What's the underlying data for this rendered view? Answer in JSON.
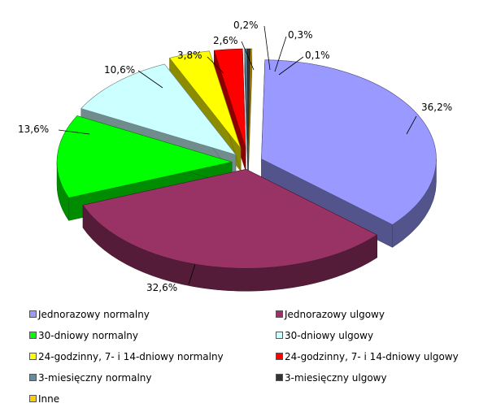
{
  "chart_data": {
    "type": "pie",
    "title": "",
    "labels": [
      "Jednorazowy normalny",
      "Jednorazowy ulgowy",
      "30-dniowy  normalny",
      "30-dniowy ulgowy",
      "24-godzinny, 7- i 14-dniowy  normalny",
      "24-godzinny, 7- i 14-dniowy  ulgowy",
      "3-miesięczny normalny",
      "3-miesięczny ulgowy",
      "Inne"
    ],
    "values": [
      36.2,
      32.6,
      13.6,
      10.6,
      3.8,
      2.6,
      0.2,
      0.3,
      0.1
    ],
    "value_labels": [
      "36,2%",
      "32,6%",
      "13,6%",
      "10,6%",
      "3,8%",
      "2,6%",
      "0,2%",
      "0,3%",
      "0,1%"
    ],
    "colors": [
      "#9999ff",
      "#993366",
      "#00ff00",
      "#ccffff",
      "#ffff00",
      "#ff0000",
      "#5c8ea8",
      "#333333",
      "#ffcc00"
    ],
    "exploded": true,
    "three_d": true,
    "legend_position": "bottom"
  }
}
